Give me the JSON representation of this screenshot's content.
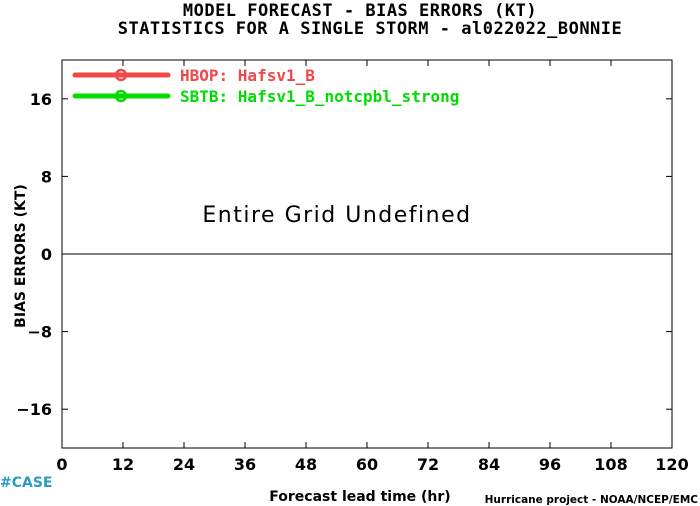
{
  "chart_data": {
    "type": "line",
    "title": "MODEL FORECAST - BIAS ERRORS (KT)",
    "subtitle": "STATISTICS FOR A SINGLE STORM - al022022_BONNIE",
    "xlabel": "Forecast lead time (hr)",
    "ylabel": "BIAS ERRORS (KT)",
    "xlim": [
      0,
      120
    ],
    "ylim": [
      -20,
      20
    ],
    "xticks": [
      0,
      12,
      24,
      36,
      48,
      60,
      72,
      84,
      96,
      108,
      120
    ],
    "yticks": [
      -16,
      -8,
      0,
      8,
      16
    ],
    "zero_line": true,
    "grid": false,
    "legend_position": "top-left",
    "annotation": "Entire Grid Undefined",
    "series": [
      {
        "name": "HBOP: Hafsv1_B",
        "color": "#f04848",
        "x": [],
        "y": []
      },
      {
        "name": "SBTB: Hafsv1_B_notcpbl_strong",
        "color": "#00dd00",
        "x": [],
        "y": []
      }
    ]
  },
  "footer": {
    "case_label": "#CASE",
    "case_color": "#2a9dbd",
    "credit": "Hurricane project - NOAA/NCEP/EMC"
  }
}
